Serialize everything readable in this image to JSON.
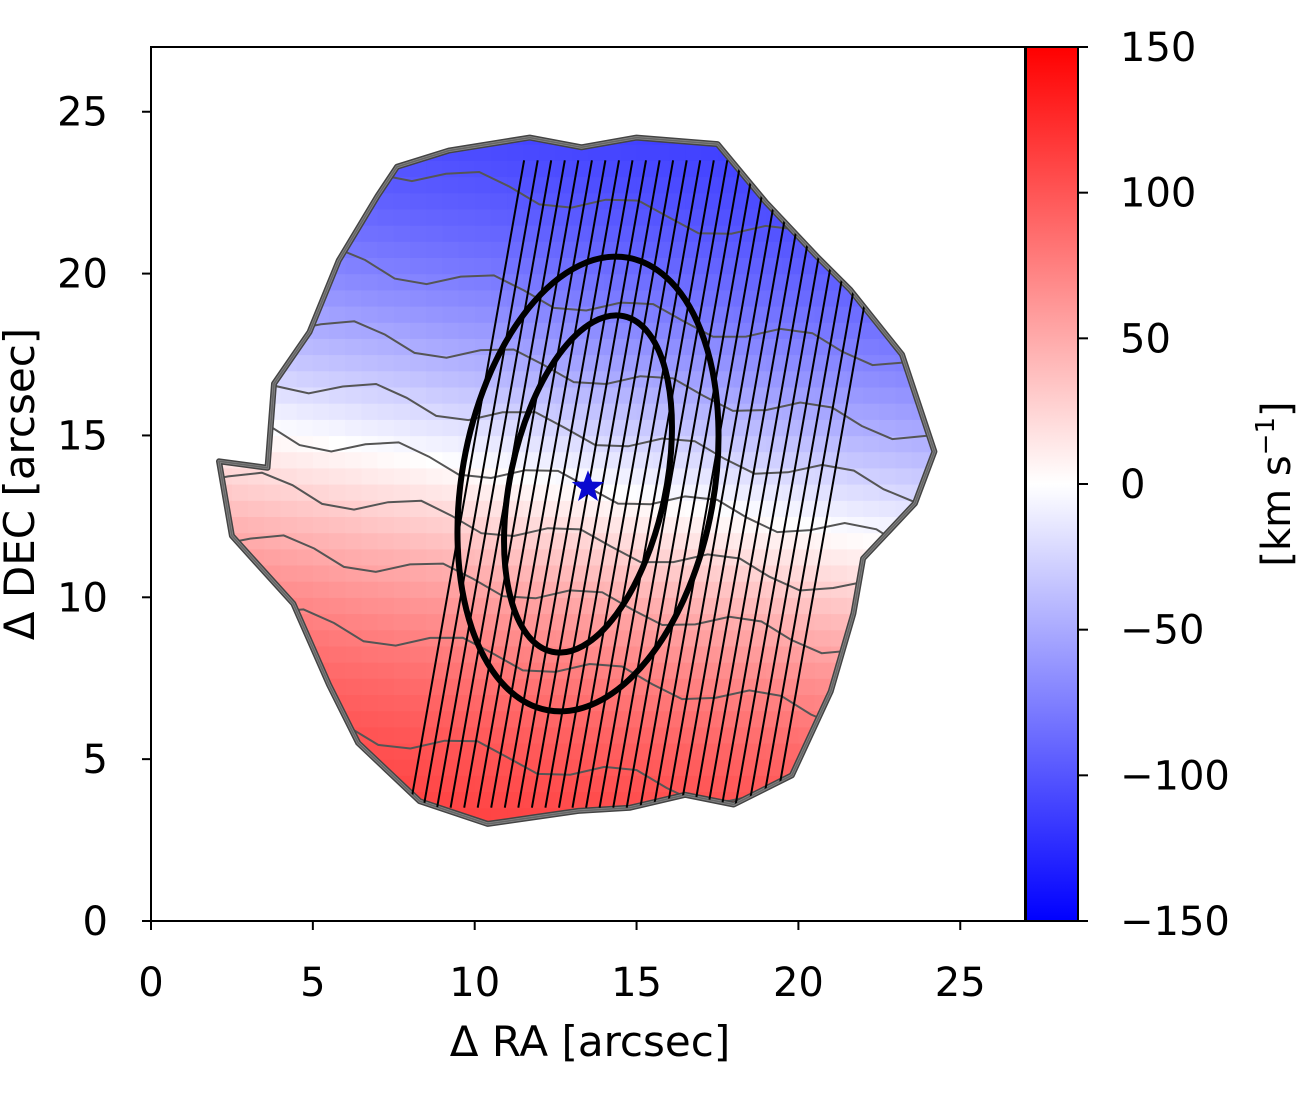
{
  "chart_data": {
    "type": "heatmap",
    "title": "",
    "xlabel": "Δ RA  [arcsec]",
    "ylabel": "Δ DEC [arcsec]",
    "xlim": [
      0,
      27
    ],
    "ylim": [
      0,
      27
    ],
    "x_ticks": [
      0,
      5,
      10,
      15,
      20,
      25
    ],
    "y_ticks": [
      0,
      5,
      10,
      15,
      20,
      25
    ],
    "grid": false,
    "colormap": "bwr",
    "colorbar": {
      "label": "[km s",
      "label_sup": "−1",
      "label_end": "]",
      "vmin": -150,
      "vmax": 150,
      "ticks": [
        -150,
        -100,
        -50,
        0,
        50,
        100,
        150
      ],
      "tick_labels": [
        "−150",
        "−100",
        "−50",
        "0",
        "50",
        "100",
        "150"
      ]
    },
    "velocity_field": {
      "center": [
        13.5,
        13.4
      ],
      "kinematic_pa_deg": 10,
      "peak_kms": 130,
      "scale_arcsec": 8.5
    },
    "boundary_outline": [
      [
        7.6,
        23.3
      ],
      [
        9.2,
        23.8
      ],
      [
        11.7,
        24.2
      ],
      [
        13.3,
        23.9
      ],
      [
        15.0,
        24.2
      ],
      [
        17.5,
        24.0
      ],
      [
        19.0,
        22.2
      ],
      [
        20.6,
        20.5
      ],
      [
        21.6,
        19.5
      ],
      [
        23.2,
        17.5
      ],
      [
        24.2,
        14.5
      ],
      [
        23.6,
        12.9
      ],
      [
        22.0,
        11.2
      ],
      [
        21.7,
        9.5
      ],
      [
        21.0,
        7.1
      ],
      [
        19.8,
        4.5
      ],
      [
        18.0,
        3.6
      ],
      [
        16.5,
        3.9
      ],
      [
        14.8,
        3.5
      ],
      [
        13.2,
        3.4
      ],
      [
        11.8,
        3.2
      ],
      [
        10.4,
        3.0
      ],
      [
        8.3,
        3.7
      ],
      [
        6.4,
        5.5
      ],
      [
        5.5,
        7.3
      ],
      [
        4.4,
        9.8
      ],
      [
        2.5,
        11.9
      ],
      [
        2.1,
        14.2
      ],
      [
        3.6,
        14.0
      ],
      [
        3.8,
        16.6
      ],
      [
        4.9,
        18.2
      ],
      [
        5.8,
        20.4
      ],
      [
        7.0,
        22.4
      ]
    ],
    "ellipses": [
      {
        "cx": 13.5,
        "cy": 13.5,
        "a": 7.1,
        "b": 3.9,
        "angle_deg": 80
      },
      {
        "cx": 13.5,
        "cy": 13.5,
        "a": 5.3,
        "b": 2.4,
        "angle_deg": 78
      }
    ],
    "slit_lines": {
      "count": 28,
      "x_start": 8.0,
      "x_end": 19.3,
      "tilt_deg": 10
    },
    "marker": {
      "type": "star",
      "x": 13.5,
      "y": 13.4,
      "color": "#0a0ad0"
    }
  }
}
